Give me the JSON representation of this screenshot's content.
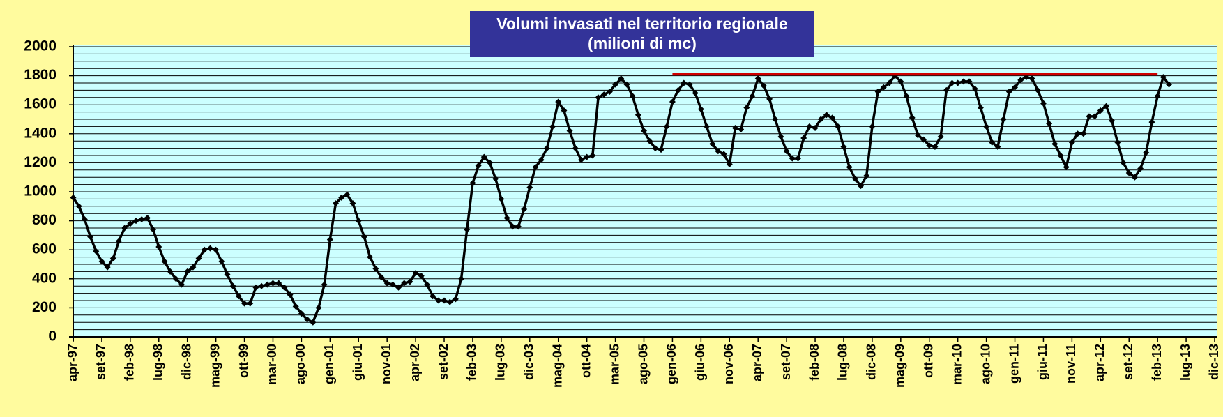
{
  "chart_data": {
    "type": "line",
    "title": "Volumi invasati nel territorio regionale",
    "subtitle": "(milioni di mc)",
    "categories": [
      "apr-97",
      null,
      null,
      null,
      null,
      "set-97",
      null,
      null,
      null,
      null,
      "feb-98",
      null,
      null,
      null,
      null,
      "lug-98",
      null,
      null,
      null,
      null,
      "dic-98",
      null,
      null,
      null,
      null,
      "mag-99",
      null,
      null,
      null,
      null,
      "ott-99",
      null,
      null,
      null,
      null,
      "mar-00",
      null,
      null,
      null,
      null,
      "ago-00",
      null,
      null,
      null,
      null,
      "gen-01",
      null,
      null,
      null,
      null,
      "giu-01",
      null,
      null,
      null,
      null,
      "nov-01",
      null,
      null,
      null,
      null,
      "apr-02",
      null,
      null,
      null,
      null,
      "set-02",
      null,
      null,
      null,
      null,
      "feb-03",
      null,
      null,
      null,
      null,
      "lug-03",
      null,
      null,
      null,
      null,
      "dic-03",
      null,
      null,
      null,
      null,
      "mag-04",
      null,
      null,
      null,
      null,
      "ott-04",
      null,
      null,
      null,
      null,
      "mar-05",
      null,
      null,
      null,
      null,
      "ago-05",
      null,
      null,
      null,
      null,
      "gen-06",
      null,
      null,
      null,
      null,
      "giu-06",
      null,
      null,
      null,
      null,
      "nov-06",
      null,
      null,
      null,
      null,
      "apr-07",
      null,
      null,
      null,
      null,
      "set-07",
      null,
      null,
      null,
      null,
      "feb-08",
      null,
      null,
      null,
      null,
      "lug-08",
      null,
      null,
      null,
      null,
      "dic-08",
      null,
      null,
      null,
      null,
      "mag-09",
      null,
      null,
      null,
      null,
      "ott-09",
      null,
      null,
      null,
      null,
      "mar-10",
      null,
      null,
      null,
      null,
      "ago-10",
      null,
      null,
      null,
      null,
      "gen-11",
      null,
      null,
      null,
      null,
      "giu-11",
      null,
      null,
      null,
      null,
      "nov-11",
      null,
      null,
      null,
      null,
      "apr-12",
      null,
      null,
      null,
      null,
      "set-12",
      null,
      null,
      null,
      null,
      "feb-13",
      null,
      null,
      null,
      null,
      "lug-13",
      null,
      null,
      null,
      null,
      "dic-13"
    ],
    "series": [
      {
        "color": "#000000",
        "marker": "diamond",
        "values": [
          960,
          900,
          810,
          690,
          590,
          520,
          480,
          540,
          660,
          750,
          780,
          800,
          810,
          820,
          740,
          620,
          520,
          450,
          400,
          360,
          450,
          480,
          540,
          600,
          610,
          600,
          520,
          430,
          350,
          280,
          230,
          230,
          340,
          350,
          360,
          370,
          370,
          340,
          290,
          210,
          160,
          120,
          100,
          200,
          360,
          670,
          920,
          960,
          980,
          920,
          800,
          690,
          550,
          470,
          410,
          370,
          360,
          340,
          370,
          380,
          440,
          420,
          360,
          280,
          250,
          250,
          240,
          260,
          400,
          740,
          1060,
          1180,
          1240,
          1200,
          1090,
          950,
          820,
          760,
          760,
          880,
          1030,
          1170,
          1220,
          1300,
          1450,
          1620,
          1560,
          1420,
          1300,
          1220,
          1240,
          1250,
          1650,
          1670,
          1690,
          1740,
          1780,
          1740,
          1660,
          1530,
          1420,
          1350,
          1300,
          1290,
          1450,
          1620,
          1700,
          1750,
          1740,
          1680,
          1570,
          1450,
          1330,
          1280,
          1260,
          1190,
          1440,
          1430,
          1580,
          1660,
          1780,
          1730,
          1640,
          1500,
          1380,
          1280,
          1230,
          1230,
          1370,
          1450,
          1440,
          1500,
          1530,
          1510,
          1450,
          1310,
          1170,
          1090,
          1040,
          1110,
          1450,
          1690,
          1720,
          1750,
          1800,
          1760,
          1660,
          1510,
          1390,
          1360,
          1320,
          1310,
          1380,
          1700,
          1750,
          1750,
          1760,
          1760,
          1710,
          1580,
          1450,
          1340,
          1310,
          1500,
          1690,
          1720,
          1770,
          1790,
          1780,
          1700,
          1610,
          1470,
          1330,
          1250,
          1170,
          1340,
          1400,
          1400,
          1520,
          1520,
          1560,
          1590,
          1490,
          1340,
          1200,
          1130,
          1100,
          1160,
          1270,
          1480,
          1660,
          1790,
          1740,
          null,
          null,
          null,
          null,
          null,
          null,
          null,
          null
        ]
      },
      {
        "color": "#d00000",
        "values": [
          null,
          null,
          null,
          null,
          null,
          null,
          null,
          null,
          null,
          null,
          null,
          null,
          null,
          null,
          null,
          null,
          null,
          null,
          null,
          null,
          null,
          null,
          null,
          null,
          null,
          null,
          null,
          null,
          null,
          null,
          null,
          null,
          null,
          null,
          null,
          null,
          null,
          null,
          null,
          null,
          null,
          null,
          null,
          null,
          null,
          null,
          null,
          null,
          null,
          null,
          null,
          null,
          null,
          null,
          null,
          null,
          null,
          null,
          null,
          null,
          null,
          null,
          null,
          null,
          null,
          null,
          null,
          null,
          null,
          null,
          null,
          null,
          null,
          null,
          null,
          null,
          null,
          null,
          null,
          null,
          null,
          null,
          null,
          null,
          null,
          null,
          null,
          null,
          null,
          null,
          null,
          null,
          null,
          null,
          null,
          null,
          null,
          null,
          null,
          null,
          null,
          null,
          null,
          null,
          null,
          1810,
          1810,
          1810,
          1810,
          1810,
          1810,
          1810,
          1810,
          1810,
          1810,
          1810,
          1810,
          1810,
          1810,
          1810,
          1810,
          1810,
          1810,
          1810,
          1810,
          1810,
          1810,
          1810,
          1810,
          1810,
          1810,
          1810,
          1810,
          1810,
          1810,
          1810,
          1810,
          1810,
          1810,
          1810,
          1810,
          1810,
          1810,
          1810,
          1810,
          1810,
          1810,
          1810,
          1810,
          1810,
          1810,
          1810,
          1810,
          1810,
          1810,
          1810,
          1810,
          1810,
          1810,
          1810,
          1810,
          1810,
          1810,
          1810,
          1810,
          1810,
          1810,
          1810,
          1810,
          1810,
          1810,
          1810,
          1810,
          1810,
          1810,
          1810,
          1810,
          1810,
          1810,
          1810,
          1810,
          1810,
          1810,
          1810,
          1810,
          1810,
          1810,
          1810,
          1810,
          1810,
          1810,
          null,
          null,
          null,
          null,
          null,
          null,
          null,
          null,
          null,
          null
        ]
      }
    ],
    "ylim": [
      0,
      2000
    ],
    "yticks": [
      0,
      200,
      400,
      600,
      800,
      1000,
      1200,
      1400,
      1600,
      1800,
      2000
    ],
    "minor_yticks": [
      0,
      50,
      100,
      150,
      200,
      250,
      300,
      350,
      400,
      450,
      500,
      550,
      600,
      650,
      700,
      750,
      800,
      850,
      900,
      950,
      1000,
      1050,
      1100,
      1150,
      1200,
      1250,
      1300,
      1350,
      1400,
      1450,
      1500,
      1550,
      1600,
      1650,
      1700,
      1750,
      1800,
      1850,
      1900,
      1950,
      2000
    ],
    "grid": true
  }
}
